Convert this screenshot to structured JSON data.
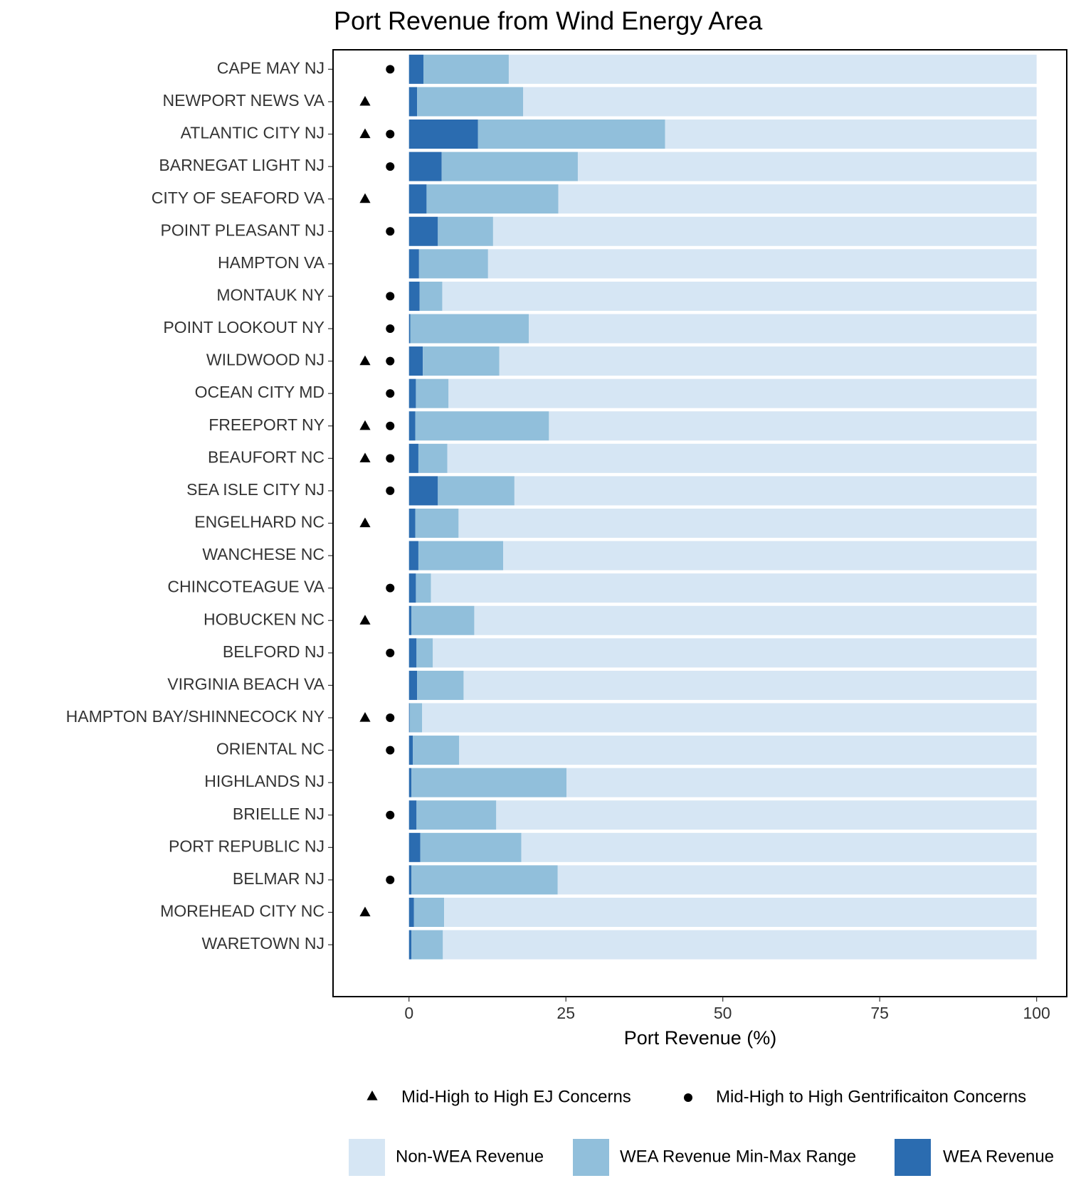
{
  "chart_data": {
    "type": "bar",
    "orientation": "horizontal",
    "stacked": true,
    "title": "Port Revenue from Wind Energy Area",
    "x_label": "Port Revenue (%)",
    "categories": [
      "CAPE MAY NJ",
      "NEWPORT NEWS VA",
      "ATLANTIC CITY NJ",
      "BARNEGAT LIGHT NJ",
      "CITY OF SEAFORD VA",
      "POINT PLEASANT NJ",
      "HAMPTON VA",
      "MONTAUK NY",
      "POINT LOOKOUT NY",
      "WILDWOOD NJ",
      "OCEAN CITY MD",
      "FREEPORT NY",
      "BEAUFORT NC",
      "SEA ISLE CITY NJ",
      "ENGELHARD NC",
      "WANCHESE NC",
      "CHINCOTEAGUE VA",
      "HOBUCKEN NC",
      "BELFORD NJ",
      "VIRGINIA BEACH VA",
      "HAMPTON BAY/SHINNECOCK NY",
      "ORIENTAL NC",
      "HIGHLANDS NJ",
      "BRIELLE NJ",
      "PORT REPUBLIC NJ",
      "BELMAR NJ",
      "MOREHEAD CITY NC",
      "WARETOWN NJ"
    ],
    "series": [
      {
        "name": "WEA Revenue",
        "color": "#2b6cb0",
        "values": [
          2.3,
          1.3,
          11.0,
          5.2,
          2.8,
          4.6,
          1.6,
          1.7,
          0.2,
          2.2,
          1.1,
          1.0,
          1.5,
          4.6,
          1.0,
          1.5,
          1.1,
          0.4,
          1.2,
          1.3,
          0.1,
          0.6,
          0.4,
          1.2,
          1.8,
          0.4,
          0.8,
          0.4
        ]
      },
      {
        "name": "WEA Revenue Min-Max Range",
        "color": "#91bfdb",
        "values": [
          13.6,
          16.9,
          29.8,
          21.7,
          21.0,
          8.8,
          11.0,
          3.6,
          18.9,
          12.2,
          5.2,
          21.3,
          4.6,
          12.2,
          6.9,
          13.5,
          2.4,
          10.0,
          2.6,
          7.4,
          2.0,
          7.4,
          24.7,
          12.7,
          16.1,
          23.3,
          4.8,
          5.0
        ]
      },
      {
        "name": "Non-WEA Revenue",
        "color": "#d6e6f4",
        "values": [
          84.1,
          81.8,
          59.2,
          73.1,
          76.2,
          86.6,
          87.4,
          94.7,
          80.9,
          85.6,
          93.7,
          77.7,
          93.9,
          83.2,
          92.1,
          85.0,
          96.5,
          89.6,
          96.2,
          91.3,
          97.9,
          92.0,
          74.9,
          86.1,
          82.1,
          76.3,
          94.4,
          94.6
        ]
      }
    ],
    "markers": [
      {
        "name": "Mid-High to High EJ Concerns",
        "shape": "triangle",
        "color": "#000000",
        "values": [
          null,
          -7,
          -7,
          null,
          -7,
          null,
          null,
          null,
          null,
          -7,
          null,
          -7,
          -7,
          null,
          -7,
          null,
          null,
          -7,
          null,
          null,
          -7,
          null,
          null,
          null,
          null,
          null,
          -7,
          null
        ]
      },
      {
        "name": "Mid-High to High Gentrificaiton Concerns",
        "shape": "circle",
        "color": "#000000",
        "values": [
          -3,
          null,
          -3,
          -3,
          null,
          -3,
          null,
          -3,
          -3,
          -3,
          -3,
          -3,
          -3,
          -3,
          null,
          null,
          -3,
          null,
          -3,
          null,
          -3,
          -3,
          null,
          -3,
          null,
          -3,
          null,
          null
        ]
      }
    ],
    "xlim": [
      -12.1,
      104.8
    ],
    "xticks": [
      0,
      25,
      50,
      75,
      100
    ],
    "grid": false
  }
}
